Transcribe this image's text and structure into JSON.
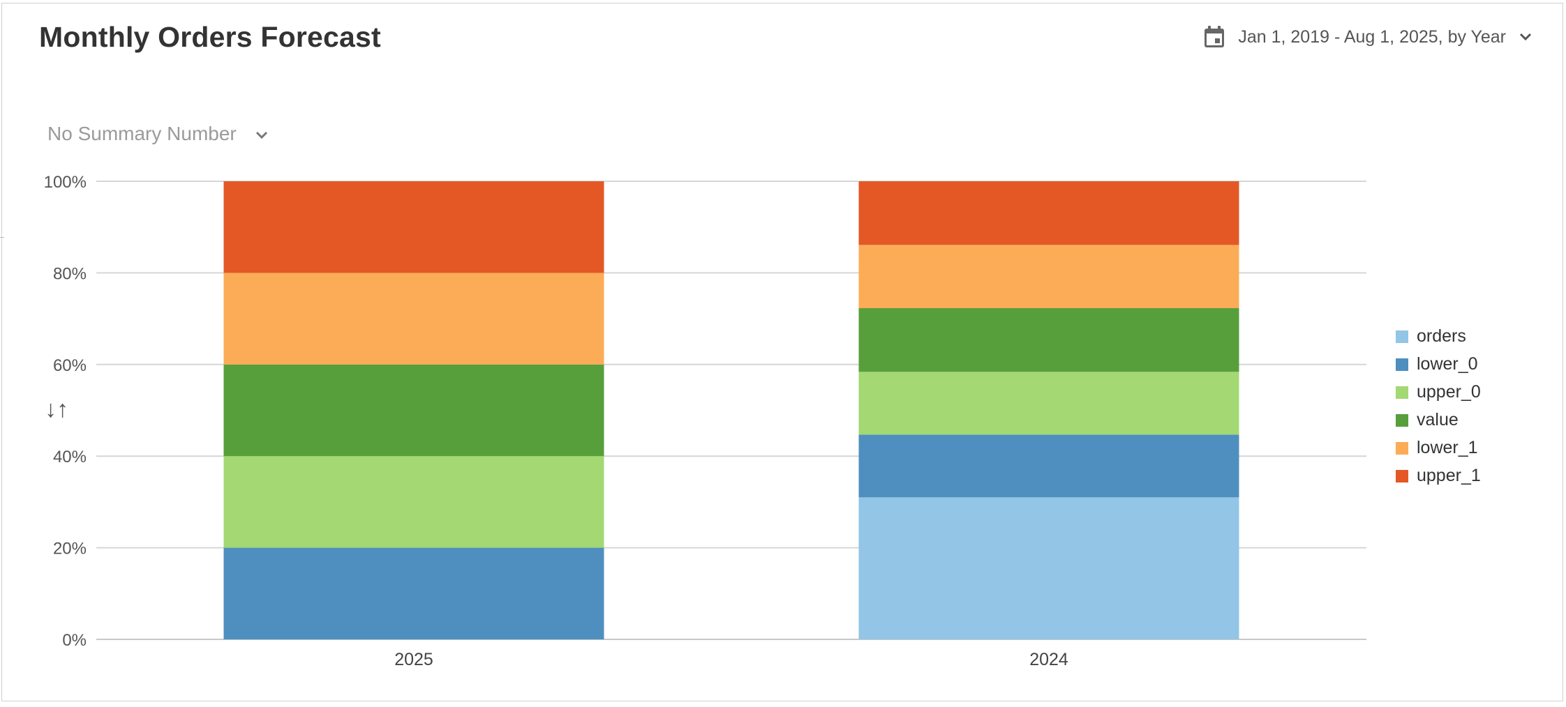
{
  "header": {
    "title": "Monthly Orders Forecast",
    "date_range": "Jan 1, 2019 - Aug 1, 2025, by Year",
    "calendar_icon": "calendar-icon",
    "dropdown_icon": "chevron-down-icon"
  },
  "summary": {
    "label": "No Summary Number",
    "dropdown_icon": "chevron-down-icon"
  },
  "sort": {
    "glyph": "↓↑",
    "icon": "sort-icon"
  },
  "chart_data": {
    "type": "bar",
    "stacked": true,
    "normalized": true,
    "categories": [
      "2025",
      "2024"
    ],
    "y_ticks": [
      "0%",
      "20%",
      "40%",
      "60%",
      "80%",
      "100%"
    ],
    "ylim": [
      0,
      100
    ],
    "grid": true,
    "legend_position": "right",
    "series": [
      {
        "name": "orders",
        "color": "#92c5e6",
        "values": [
          0,
          31
        ]
      },
      {
        "name": "lower_0",
        "color": "#4e8fbf",
        "values": [
          20,
          13.7
        ]
      },
      {
        "name": "upper_0",
        "color": "#a3d873",
        "values": [
          20,
          13.7
        ]
      },
      {
        "name": "value",
        "color": "#579f3b",
        "values": [
          20,
          13.9
        ]
      },
      {
        "name": "lower_1",
        "color": "#fcac57",
        "values": [
          20,
          13.8
        ]
      },
      {
        "name": "upper_1",
        "color": "#e45825",
        "values": [
          20,
          13.9
        ]
      }
    ]
  }
}
